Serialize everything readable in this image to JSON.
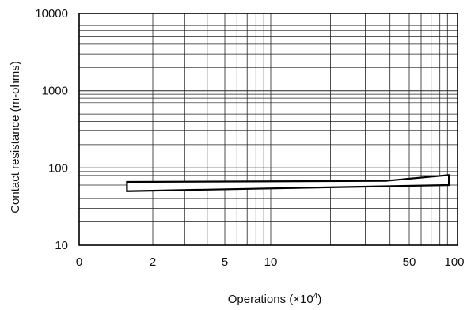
{
  "chart_data": {
    "type": "area",
    "title": "",
    "xlabel": "Operations (×10",
    "xlabel_sup": "4",
    "xlabel_close": ")",
    "ylabel": "Contact resistance (m-ohms)",
    "x_ticks": [
      {
        "value": 0,
        "label": "0"
      },
      {
        "value": 2,
        "label": "2"
      },
      {
        "value": 5,
        "label": "5"
      },
      {
        "value": 10,
        "label": "10"
      },
      {
        "value": 50,
        "label": "50"
      },
      {
        "value": 100,
        "label": "100"
      }
    ],
    "y_scale": "log",
    "ylim": [
      10,
      10000
    ],
    "y_ticks": [
      {
        "value": 10,
        "label": "10"
      },
      {
        "value": 100,
        "label": "100"
      },
      {
        "value": 1000,
        "label": "1000"
      },
      {
        "value": 10000,
        "label": "10000"
      }
    ],
    "grid": true,
    "band": {
      "x_start": 1.3,
      "x_end": 92,
      "upper": [
        {
          "x": 1.3,
          "y": 66
        },
        {
          "x": 38,
          "y": 68
        },
        {
          "x": 92,
          "y": 81
        }
      ],
      "lower": [
        {
          "x": 1.3,
          "y": 50
        },
        {
          "x": 92,
          "y": 60
        }
      ]
    }
  }
}
